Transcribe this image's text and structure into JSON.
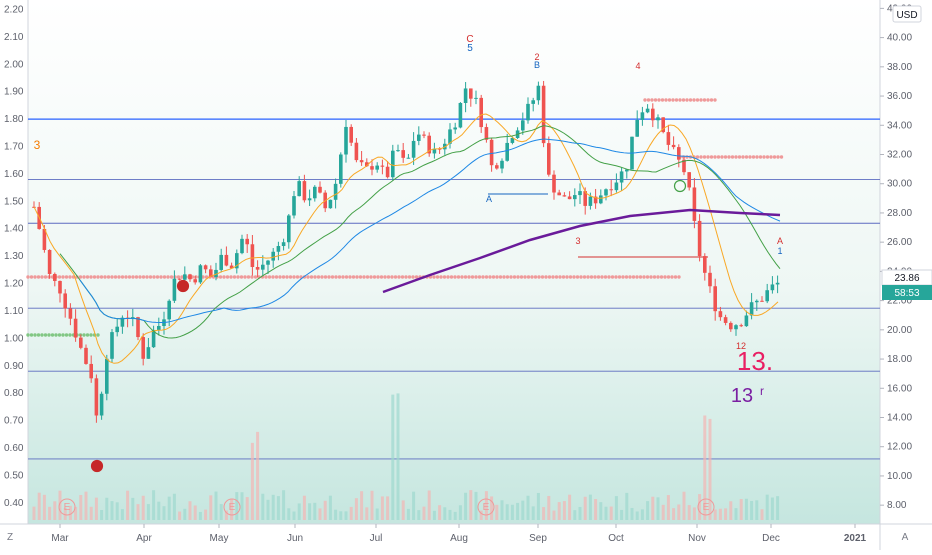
{
  "toolbar": {
    "currency_badge": "USD",
    "zoom_label": "Z",
    "auto_label": "A"
  },
  "price_tags": {
    "last_price": "23.86",
    "countdown": "58:53"
  },
  "chart_data": {
    "type": "candlestick",
    "title": "",
    "left_axis": {
      "ticks": [
        "2.20",
        "2.10",
        "2.00",
        "1.90",
        "1.80",
        "1.70",
        "1.60",
        "1.50",
        "1.40",
        "1.30",
        "1.20",
        "1.10",
        "1.00",
        "0.90",
        "0.80",
        "0.70",
        "0.60",
        "0.50",
        "0.40"
      ],
      "range": [
        0.37,
        2.22
      ]
    },
    "right_axis": {
      "ticks": [
        "42.00",
        "40.00",
        "38.00",
        "36.00",
        "34.00",
        "32.00",
        "30.00",
        "28.00",
        "26.00",
        "24.00",
        "22.00",
        "20.00",
        "18.00",
        "16.00",
        "14.00",
        "12.00",
        "10.00",
        "8.00"
      ],
      "range": [
        7.6,
        42.3
      ]
    },
    "x_axis": {
      "labels": [
        "Mar",
        "Apr",
        "May",
        "Jun",
        "Jul",
        "Aug",
        "Sep",
        "Oct",
        "Nov",
        "Dec",
        "2021"
      ]
    },
    "grid": false,
    "horizontal_levels": [
      {
        "price": 1.8,
        "color": "#2962ff"
      },
      {
        "price": 1.58,
        "color": "#5c6bc0"
      },
      {
        "price": 1.42,
        "color": "#5c6bc0"
      },
      {
        "price": 1.11,
        "color": "#5c6bc0"
      },
      {
        "price": 0.88,
        "color": "#5c6bc0"
      },
      {
        "price": 0.56,
        "color": "#5c6bc0"
      }
    ],
    "markers": [
      {
        "text": "C",
        "color": "#d32f2f"
      },
      {
        "text": "5",
        "color": "#1565c0"
      },
      {
        "text": "2",
        "color": "#d32f2f"
      },
      {
        "text": "B",
        "color": "#1565c0"
      },
      {
        "text": "4",
        "color": "#d32f2f"
      },
      {
        "text": "3",
        "color": "#f57c00"
      },
      {
        "text": "A",
        "color": "#1565c0"
      },
      {
        "text": "3",
        "color": "#d32f2f"
      },
      {
        "text": "A",
        "color": "#d32f2f"
      },
      {
        "text": "1",
        "color": "#1565c0"
      },
      {
        "text": "12",
        "color": "#d32f2f"
      },
      {
        "text": "13.",
        "color": "#e91e63"
      },
      {
        "text": "13",
        "color": "#7b1fa2"
      },
      {
        "text": "r",
        "color": "#7b1fa2"
      },
      {
        "text": "E",
        "color": "#ef9a9a"
      },
      {
        "text": "E",
        "color": "#ef9a9a"
      },
      {
        "text": "E",
        "color": "#ef9a9a"
      },
      {
        "text": "E",
        "color": "#ef9a9a"
      }
    ],
    "colors": {
      "up": "#26a69a",
      "down": "#ef5350",
      "ma_fast": "#f9a825",
      "ma_mid": "#43a047",
      "ma_slow": "#1e88e5",
      "ma_long": "#6a1b9a"
    }
  }
}
